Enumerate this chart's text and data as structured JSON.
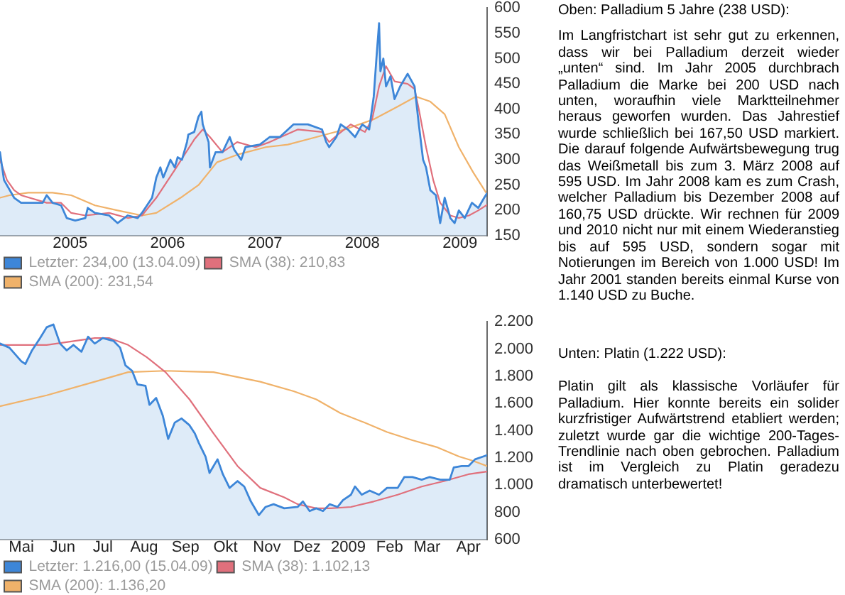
{
  "chart_data": [
    {
      "type": "line",
      "annotations": [
        "Oben: Palladium 5 Jahre (238 USD):",
        "Im Langfristchart ist sehr gut zu erkennen, dass wir bei Palladium derzeit wieder „unten“ sind. Im Jahr 2005 durchbrach Palladium die Marke bei 200 USD nach unten, woraufhin viele Marktteilnehmer heraus geworfen wurden. Das Jahrestief wurde schließlich bei 167,50 USD markiert. Die darauf folgende Aufwärtsbewegung trug das Weißmetall bis zum 3. März 2008 auf 595 USD. Im Jahr 2008 kam es zum Crash, welcher Palladium bis Dezember 2008 auf 160,75 USD drückte. Wir rechnen für 2009 und 2010 nicht nur mit einem Wiederanstieg bis auf 595 USD, sondern sogar mit Notierungen im Bereich von 1.000 USD! Im Jahr 2001 standen bereits einmal Kurse von 1.140 USD zu Buche."
      ],
      "xlim": [
        "2004-04-13",
        "2009-04-13"
      ],
      "xticks": [
        "2005",
        "2006",
        "2007",
        "2008",
        "2009"
      ],
      "ylim": [
        150,
        600
      ],
      "yticks": [
        150,
        200,
        250,
        300,
        350,
        400,
        450,
        500,
        550,
        600
      ],
      "grid": false,
      "legend": "bottom left",
      "series": [
        {
          "name": "Letzter: 234,00 (13.04.09)",
          "type": "area",
          "color": "#3d86d8",
          "x": [
            "2004-04-13",
            "2004-04-28",
            "2004-06-05",
            "2004-07-01",
            "2004-08-13",
            "2004-09-20",
            "2004-10-05",
            "2004-10-27",
            "2004-11-28",
            "2004-12-19",
            "2005-01-20",
            "2005-02-27",
            "2005-03-08",
            "2005-04-04",
            "2005-05-27",
            "2005-06-28",
            "2005-08-05",
            "2005-09-11",
            "2005-09-27",
            "2005-11-04",
            "2005-11-20",
            "2005-12-05",
            "2005-12-16",
            "2006-01-12",
            "2006-01-28",
            "2006-02-08",
            "2006-02-24",
            "2006-03-15",
            "2006-03-20",
            "2006-04-11",
            "2006-04-27",
            "2006-05-08",
            "2006-05-13",
            "2006-06-04",
            "2006-06-09",
            "2006-06-30",
            "2006-07-26",
            "2006-08-22",
            "2006-09-08",
            "2006-10-04",
            "2006-10-20",
            "2006-12-13",
            "2007-01-19",
            "2007-02-26",
            "2007-04-18",
            "2007-06-11",
            "2007-08-03",
            "2007-08-19",
            "2007-08-30",
            "2007-09-26",
            "2007-10-12",
            "2007-11-08",
            "2007-12-05",
            "2008-01-01",
            "2008-01-27",
            "2008-02-13",
            "2008-02-23",
            "2008-03-04",
            "2008-03-09",
            "2008-03-20",
            "2008-03-30",
            "2008-04-16",
            "2008-05-01",
            "2008-05-22",
            "2008-06-19",
            "2008-07-15",
            "2008-07-31",
            "2008-08-16",
            "2008-08-27",
            "2008-09-12",
            "2008-10-03",
            "2008-10-19",
            "2008-11-05",
            "2008-11-26",
            "2008-12-12",
            "2008-12-28",
            "2009-01-19",
            "2009-02-15",
            "2009-03-11",
            "2009-04-02",
            "2009-04-13"
          ],
          "values": [
            315,
            260,
            225,
            215,
            215,
            215,
            230,
            215,
            210,
            185,
            180,
            185,
            205,
            195,
            190,
            175,
            190,
            185,
            195,
            225,
            265,
            285,
            265,
            300,
            285,
            305,
            300,
            335,
            350,
            355,
            385,
            395,
            370,
            335,
            285,
            315,
            315,
            345,
            320,
            300,
            325,
            330,
            345,
            345,
            370,
            370,
            360,
            335,
            325,
            345,
            370,
            360,
            345,
            370,
            360,
            425,
            500,
            570,
            475,
            500,
            445,
            465,
            420,
            445,
            470,
            445,
            370,
            300,
            285,
            240,
            230,
            175,
            225,
            185,
            175,
            200,
            185,
            215,
            205,
            225,
            234
          ]
        },
        {
          "name": "SMA (38): 210,83",
          "type": "line",
          "color": "#e0707c",
          "x": [
            "2004-04-13",
            "2004-05-09",
            "2004-06-05",
            "2004-07-01",
            "2004-10-05",
            "2004-11-28",
            "2005-01-05",
            "2005-02-27",
            "2005-05-27",
            "2005-08-05",
            "2005-09-27",
            "2005-11-20",
            "2006-01-28",
            "2006-04-11",
            "2006-05-13",
            "2006-06-09",
            "2006-07-26",
            "2006-09-19",
            "2006-11-27",
            "2007-01-19",
            "2007-05-05",
            "2007-08-03",
            "2007-08-30",
            "2007-10-02",
            "2007-11-19",
            "2008-01-11",
            "2008-02-07",
            "2008-03-04",
            "2008-03-30",
            "2008-05-01",
            "2008-06-19",
            "2008-07-15",
            "2008-07-31",
            "2008-08-27",
            "2008-09-23",
            "2008-10-19",
            "2008-11-26",
            "2008-12-28",
            "2009-02-04",
            "2009-03-11",
            "2009-04-13"
          ],
          "values": [
            300,
            260,
            240,
            230,
            215,
            215,
            195,
            190,
            195,
            185,
            190,
            225,
            280,
            340,
            360,
            345,
            315,
            335,
            325,
            335,
            360,
            355,
            335,
            350,
            370,
            355,
            380,
            445,
            485,
            455,
            450,
            440,
            400,
            325,
            260,
            215,
            190,
            185,
            190,
            200,
            211
          ]
        },
        {
          "name": "SMA (200): 231,54",
          "type": "line",
          "color": "#f0b26a",
          "x": [
            "2004-04-13",
            "2004-05-19",
            "2004-07-28",
            "2004-10-27",
            "2005-01-05",
            "2005-04-04",
            "2005-06-28",
            "2005-09-27",
            "2005-11-20",
            "2006-02-19",
            "2006-04-27",
            "2006-07-05",
            "2006-09-19",
            "2007-01-04",
            "2007-03-28",
            "2007-07-13",
            "2007-10-28",
            "2008-02-13",
            "2008-05-12",
            "2008-07-20",
            "2008-09-12",
            "2008-11-05",
            "2008-12-28",
            "2009-02-20",
            "2009-04-13"
          ],
          "values": [
            225,
            230,
            235,
            235,
            230,
            210,
            200,
            190,
            195,
            225,
            250,
            295,
            310,
            325,
            330,
            345,
            360,
            380,
            405,
            425,
            415,
            390,
            325,
            275,
            232
          ]
        }
      ]
    },
    {
      "type": "line",
      "annotations": [
        "Unten: Platin (1.222 USD):",
        "Platin gilt als klassische Vorläufer für Palladium. Hier konnte bereits ein solider kurzfristiger Aufwärtstrend etabliert werden; zuletzt wurde gar die wichtige 200-Tages-Trendlinie nach oben gebrochen. Palladium ist im Vergleich zu Platin geradezu dramatisch unterbewertet!"
      ],
      "xlim": [
        "2008-04-15",
        "2009-04-15"
      ],
      "xticks": [
        {
          "value": "2008-05",
          "label": "Mai"
        },
        {
          "value": "2008-06",
          "label": "Jun"
        },
        {
          "value": "2008-07",
          "label": "Jul"
        },
        {
          "value": "2008-08",
          "label": "Aug"
        },
        {
          "value": "2008-09",
          "label": "Sep"
        },
        {
          "value": "2008-10",
          "label": "Okt"
        },
        {
          "value": "2008-11",
          "label": "Nov"
        },
        {
          "value": "2008-12",
          "label": "Dez"
        },
        {
          "value": "2009-01",
          "label": "2009"
        },
        {
          "value": "2009-02",
          "label": "Feb"
        },
        {
          "value": "2009-03",
          "label": "Mar"
        },
        {
          "value": "2009-04",
          "label": "Apr"
        }
      ],
      "ylim": [
        600,
        2200
      ],
      "yticks": [
        600,
        800,
        {
          "value": 1000,
          "label": "1.000"
        },
        {
          "value": 1200,
          "label": "1.200"
        },
        {
          "value": 1400,
          "label": "1.400"
        },
        {
          "value": 1600,
          "label": "1.600"
        },
        {
          "value": 1800,
          "label": "1.800"
        },
        {
          "value": 2000,
          "label": "2.000"
        },
        {
          "value": 2200,
          "label": "2.200"
        }
      ],
      "grid": false,
      "legend": "bottom left",
      "series": [
        {
          "name": "Letzter: 1.216,00 (15.04.09)",
          "type": "area",
          "color": "#3d86d8",
          "x": [
            "2008-04-15",
            "2008-04-22",
            "2008-05-01",
            "2008-05-04",
            "2008-05-09",
            "2008-05-15",
            "2008-05-20",
            "2008-05-25",
            "2008-05-30",
            "2008-06-04",
            "2008-06-09",
            "2008-06-15",
            "2008-06-20",
            "2008-06-25",
            "2008-07-01",
            "2008-07-09",
            "2008-07-14",
            "2008-07-18",
            "2008-07-23",
            "2008-07-27",
            "2008-08-02",
            "2008-08-05",
            "2008-08-10",
            "2008-08-15",
            "2008-08-19",
            "2008-08-24",
            "2008-08-29",
            "2008-09-04",
            "2008-09-08",
            "2008-09-11",
            "2008-09-16",
            "2008-09-19",
            "2008-09-25",
            "2008-09-29",
            "2008-10-04",
            "2008-10-10",
            "2008-10-15",
            "2008-10-20",
            "2008-10-26",
            "2008-10-31",
            "2008-11-06",
            "2008-11-14",
            "2008-11-24",
            "2008-11-28",
            "2008-12-03",
            "2008-12-08",
            "2008-12-13",
            "2008-12-18",
            "2008-12-24",
            "2008-12-28",
            "2009-01-03",
            "2009-01-06",
            "2009-01-11",
            "2009-01-17",
            "2009-01-24",
            "2009-01-30",
            "2009-02-07",
            "2009-02-12",
            "2009-02-18",
            "2009-02-25",
            "2009-03-03",
            "2009-03-11",
            "2009-03-18",
            "2009-03-21",
            "2009-03-27",
            "2009-04-01",
            "2009-04-06",
            "2009-04-12",
            "2009-04-15"
          ],
          "values": [
            2040,
            2010,
            1910,
            1890,
            1990,
            2080,
            2160,
            2180,
            2040,
            1990,
            2030,
            1980,
            2090,
            2040,
            2080,
            2060,
            2010,
            1880,
            1840,
            1740,
            1730,
            1590,
            1640,
            1510,
            1340,
            1460,
            1490,
            1440,
            1380,
            1310,
            1210,
            1090,
            1190,
            1080,
            980,
            1030,
            990,
            880,
            780,
            840,
            860,
            830,
            840,
            880,
            810,
            830,
            810,
            860,
            840,
            890,
            930,
            990,
            930,
            960,
            930,
            980,
            980,
            1060,
            1060,
            1040,
            1060,
            1040,
            1040,
            1130,
            1140,
            1140,
            1190,
            1210,
            1220
          ]
        },
        {
          "name": "SMA (38): 1.102,13",
          "type": "line",
          "color": "#e0707c",
          "x": [
            "2008-04-15",
            "2008-05-20",
            "2008-06-25",
            "2008-07-06",
            "2008-07-20",
            "2008-08-03",
            "2008-08-17",
            "2008-09-04",
            "2008-09-22",
            "2008-10-10",
            "2008-10-27",
            "2008-11-14",
            "2008-11-24",
            "2008-12-08",
            "2008-12-19",
            "2009-01-03",
            "2009-01-20",
            "2009-02-07",
            "2009-02-25",
            "2009-03-14",
            "2009-04-01",
            "2009-04-15"
          ],
          "values": [
            2030,
            2030,
            2080,
            2080,
            2030,
            1940,
            1830,
            1630,
            1380,
            1140,
            980,
            910,
            860,
            830,
            830,
            840,
            880,
            930,
            990,
            1030,
            1080,
            1100
          ]
        },
        {
          "name": "SMA (200): 1.136,20",
          "type": "line",
          "color": "#f0b26a",
          "x": [
            "2008-04-15",
            "2008-05-20",
            "2008-06-25",
            "2008-07-20",
            "2008-08-17",
            "2008-09-22",
            "2008-10-27",
            "2008-11-21",
            "2008-12-08",
            "2008-12-26",
            "2009-01-13",
            "2009-01-30",
            "2009-02-18",
            "2009-03-08",
            "2009-03-25",
            "2009-04-04",
            "2009-04-15"
          ],
          "values": [
            1580,
            1660,
            1760,
            1830,
            1840,
            1830,
            1760,
            1690,
            1630,
            1530,
            1460,
            1390,
            1330,
            1280,
            1210,
            1180,
            1140
          ]
        }
      ]
    }
  ]
}
